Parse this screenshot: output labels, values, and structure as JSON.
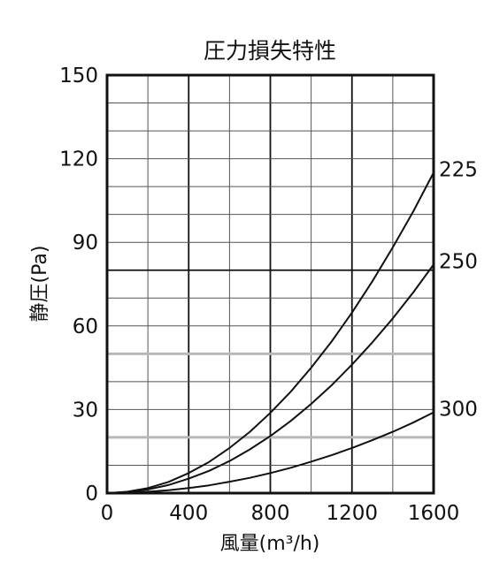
{
  "chart_data": {
    "type": "line",
    "title": "圧力損失特性",
    "xlabel": "風量(m³/h)",
    "ylabel": "静圧(Pa)",
    "xlim": [
      0,
      1600
    ],
    "ylim": [
      0,
      150
    ],
    "x_ticks": [
      0,
      400,
      800,
      1200,
      1600
    ],
    "x_tick_labels": [
      "0",
      "400",
      "800",
      "1200",
      "1600"
    ],
    "y_ticks": [
      0,
      30,
      60,
      90,
      120,
      150
    ],
    "y_tick_labels": [
      "0",
      "30",
      "60",
      "90",
      "120",
      "150"
    ],
    "grid": true,
    "series": [
      {
        "name": "225",
        "x": [
          0,
          100,
          200,
          300,
          400,
          500,
          600,
          700,
          800,
          900,
          1000,
          1100,
          1200,
          1300,
          1400,
          1500,
          1600
        ],
        "values": [
          0,
          0.5,
          1.8,
          4,
          7.2,
          11.2,
          16.2,
          22,
          28.8,
          36.4,
          45,
          54.4,
          64.8,
          76,
          88.2,
          101,
          115
        ]
      },
      {
        "name": "250",
        "x": [
          0,
          100,
          200,
          300,
          400,
          500,
          600,
          700,
          800,
          900,
          1000,
          1100,
          1200,
          1300,
          1400,
          1500,
          1600
        ],
        "values": [
          0,
          0.3,
          1.3,
          2.9,
          5.2,
          8,
          11.5,
          15.7,
          20.5,
          25.9,
          32,
          38.7,
          46.1,
          54.1,
          62.7,
          72,
          82
        ]
      },
      {
        "name": "300",
        "x": [
          0,
          100,
          200,
          300,
          400,
          500,
          600,
          700,
          800,
          900,
          1000,
          1100,
          1200,
          1300,
          1400,
          1500,
          1600
        ],
        "values": [
          0,
          0.1,
          0.5,
          1,
          1.8,
          2.8,
          4.1,
          5.5,
          7.2,
          9.1,
          11.3,
          13.6,
          16.2,
          19,
          22,
          25.3,
          29
        ]
      }
    ]
  }
}
